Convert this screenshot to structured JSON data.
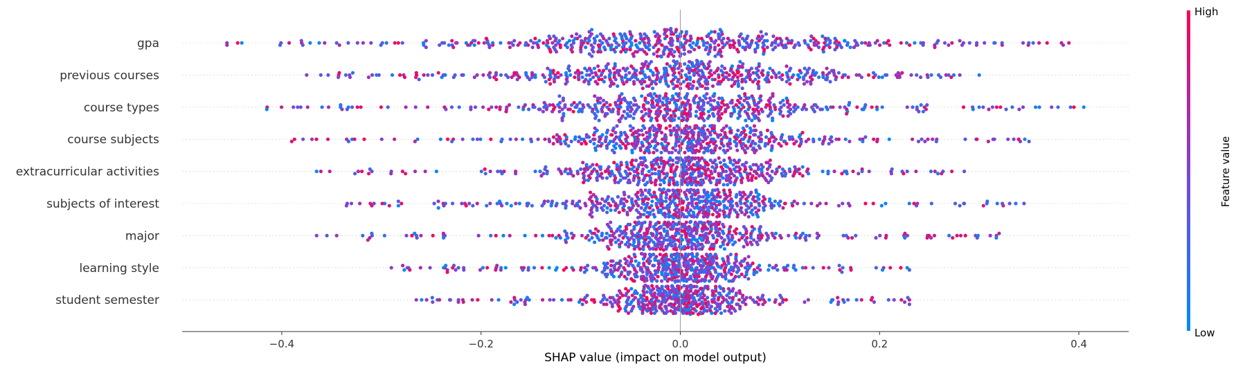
{
  "chart_data": {
    "type": "scatter",
    "subtype": "shap-beeswarm",
    "title": "",
    "xlabel": "SHAP value (impact on model output)",
    "xlim": [
      -0.5,
      0.45
    ],
    "xticks": [
      -0.4,
      -0.2,
      0.0,
      0.2,
      0.4
    ],
    "xtick_labels": [
      "−0.4",
      "−0.2",
      "0.0",
      "0.2",
      "0.4"
    ],
    "features": [
      {
        "name": "gpa",
        "min": -0.455,
        "max": 0.39,
        "spread": 0.2,
        "peak": 9
      },
      {
        "name": "previous courses",
        "min": -0.375,
        "max": 0.3,
        "spread": 0.18,
        "peak": 10
      },
      {
        "name": "course types",
        "min": -0.415,
        "max": 0.405,
        "spread": 0.14,
        "peak": 12
      },
      {
        "name": "course subjects",
        "min": -0.39,
        "max": 0.35,
        "spread": 0.11,
        "peak": 14
      },
      {
        "name": "extracurricular activities",
        "min": -0.365,
        "max": 0.285,
        "spread": 0.1,
        "peak": 14
      },
      {
        "name": "subjects of interest",
        "min": -0.335,
        "max": 0.345,
        "spread": 0.09,
        "peak": 14
      },
      {
        "name": "major",
        "min": -0.365,
        "max": 0.32,
        "spread": 0.09,
        "peak": 13
      },
      {
        "name": "learning style",
        "min": -0.29,
        "max": 0.23,
        "spread": 0.07,
        "peak": 13
      },
      {
        "name": "student semester",
        "min": -0.265,
        "max": 0.23,
        "spread": 0.065,
        "peak": 12
      }
    ],
    "colorbar": {
      "label": "Feature value",
      "high_label": "High",
      "low_label": "Low",
      "high_color": "#ff0052",
      "low_color": "#008bfb"
    },
    "grid": false,
    "legend": "colorbar-right"
  }
}
